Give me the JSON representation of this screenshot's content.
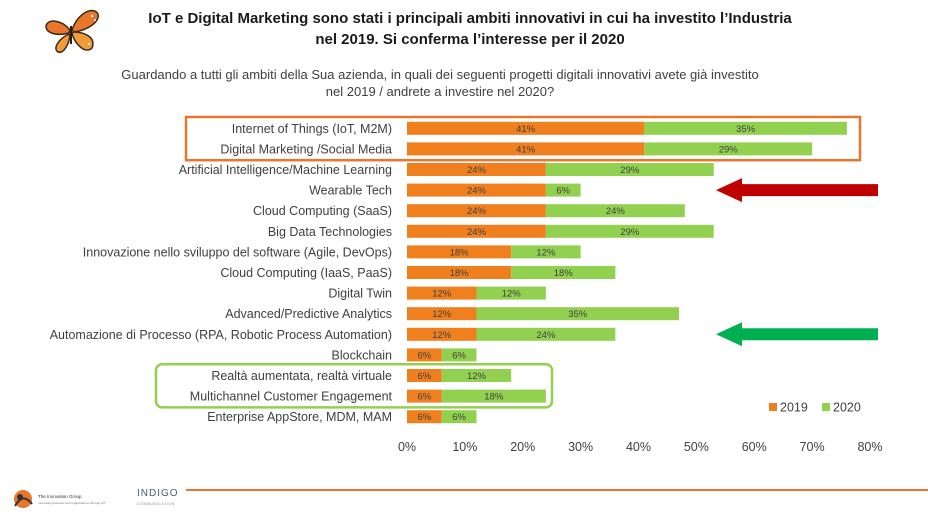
{
  "header": {
    "title_line1": "IoT e Digital Marketing sono stati i principali ambiti innovativi in cui ha investito l’Industria",
    "title_line2": "nel 2019. Si conferma l’interesse per il 2020",
    "logo_icon": "butterfly-logo"
  },
  "chart_data": {
    "type": "bar",
    "orientation": "horizontal",
    "stacked": true,
    "title": "Guardando a tutti gli ambiti della Sua azienda, in quali dei seguenti progetti digitali innovativi avete già investito nel 2019 / andrete a investire nel 2020?",
    "title_lines": [
      "Guardando a tutti gli ambiti della Sua azienda, in quali dei seguenti progetti digitali innovativi avete già investito",
      "nel 2019 / andrete a investire nel 2020?"
    ],
    "categories": [
      "Internet of Things (IoT, M2M)",
      "Digital Marketing /Social Media",
      "Artificial Intelligence/Machine Learning",
      "Wearable Tech",
      "Cloud Computing (SaaS)",
      "Big Data Technologies",
      "Innovazione nello sviluppo del software (Agile, DevOps)",
      "Cloud Computing (IaaS, PaaS)",
      "Digital Twin",
      "Advanced/Predictive Analytics",
      "Automazione di Processo (RPA, Robotic Process Automation)",
      "Blockchain",
      "Realtà aumentata, realtà virtuale",
      "Multichannel Customer Engagement",
      "Enterprise AppStore, MDM, MAM"
    ],
    "series": [
      {
        "name": "2019",
        "color": "#f07f1e",
        "values": [
          41,
          41,
          24,
          24,
          24,
          24,
          18,
          18,
          12,
          12,
          12,
          6,
          6,
          6,
          6
        ]
      },
      {
        "name": "2020",
        "color": "#92d050",
        "values": [
          35,
          29,
          29,
          6,
          24,
          29,
          12,
          18,
          12,
          35,
          24,
          6,
          12,
          18,
          6
        ]
      }
    ],
    "value_suffix": "%",
    "xlim": [
      0,
      80
    ],
    "x_ticks": [
      "0%",
      "10%",
      "20%",
      "30%",
      "40%",
      "50%",
      "60%",
      "70%",
      "80%"
    ],
    "legend_position": "bottom-right",
    "highlight_boxes": [
      {
        "categories": [
          0,
          1
        ],
        "color": "#e8762b"
      },
      {
        "categories": [
          12,
          13
        ],
        "color": "#92d050"
      }
    ],
    "arrows": [
      {
        "category": 3,
        "color": "#c00000",
        "direction": "left"
      },
      {
        "category": 10,
        "color": "#00b050",
        "direction": "left"
      }
    ]
  },
  "footer": {
    "left_brand": "The Innovation Group",
    "left_tagline": "Innovating business and organizations through ICT",
    "right_brand": "INDIGO",
    "right_tagline": "COMMUNICATION"
  }
}
